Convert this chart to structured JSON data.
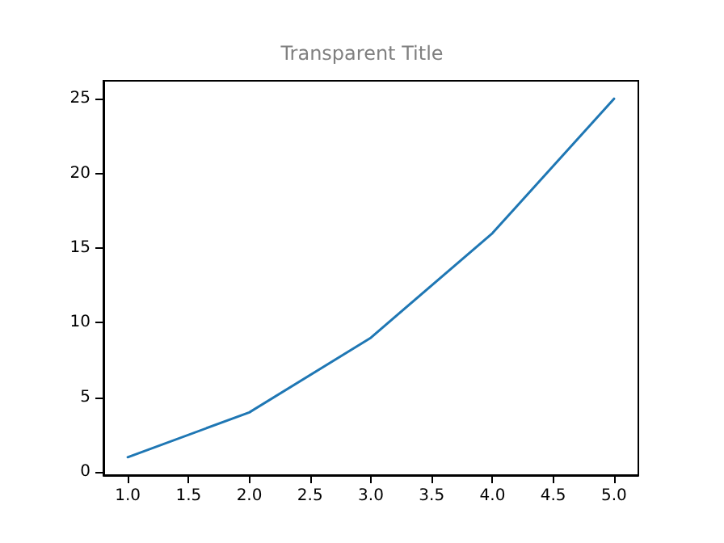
{
  "chart_data": {
    "type": "line",
    "title": "Transparent Title",
    "x": [
      1,
      2,
      3,
      4,
      5
    ],
    "series": [
      {
        "color": "#1f77b4",
        "values": [
          1,
          4,
          9,
          16,
          25
        ]
      }
    ],
    "xlim": [
      0.8,
      5.2
    ],
    "xticks": [
      {
        "value": 1,
        "label": "1.0"
      },
      {
        "value": 1.5,
        "label": "1.5"
      },
      {
        "value": 2,
        "label": "2.0"
      },
      {
        "value": 2.5,
        "label": "2.5"
      },
      {
        "value": 3,
        "label": "3.0"
      },
      {
        "value": 3.5,
        "label": "3.5"
      },
      {
        "value": 4,
        "label": "4.0"
      },
      {
        "value": 4.5,
        "label": "4.5"
      },
      {
        "value": 5,
        "label": "5.0"
      }
    ],
    "ylim": [
      -0.2,
      26.2
    ],
    "yticks": [
      0,
      5,
      10,
      15,
      20,
      25
    ],
    "grid": false,
    "marker": "none",
    "line_style": "solid"
  }
}
